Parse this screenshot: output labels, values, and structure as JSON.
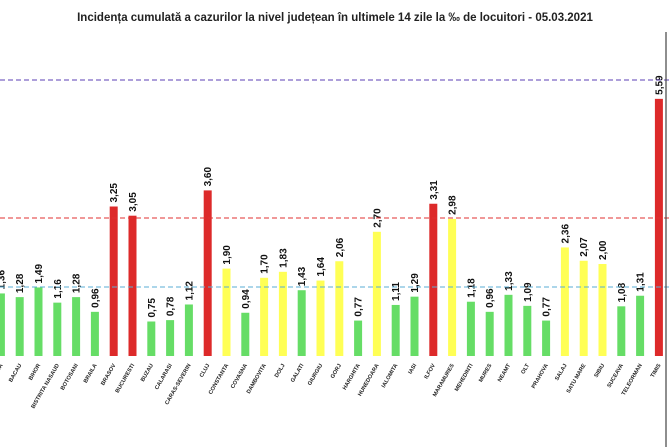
{
  "chart_data": {
    "type": "bar",
    "title": "Incidența cumulată a cazurilor la nivel județean în ultimele 14 zile la ‰ de locuitori - 05.03.2021",
    "ylim": [
      0,
      7.2
    ],
    "reference_lines": [
      {
        "value": 6.0,
        "color": "#5b3fb5"
      },
      {
        "value": 3.0,
        "color": "#e03030"
      },
      {
        "value": 1.5,
        "color": "#5aaed4"
      }
    ],
    "colors": {
      "green": "#66dd66",
      "yellow": "#ffff55",
      "red": "#dd2a2a"
    },
    "categories": [
      "ALBA",
      "BACAU",
      "BIHOR",
      "BISTRITA NASAUD",
      "BOTOSANI",
      "BRAILA",
      "BRASOV",
      "BUCURESTI",
      "BUZAU",
      "CALARASI",
      "CARAS-SEVERIN",
      "CLUJ",
      "CONSTANTA",
      "COVASNA",
      "DAMBOVITA",
      "DOLJ",
      "GALATI",
      "GIURGIU",
      "GORJ",
      "HARGHITA",
      "HUNEDOARA",
      "IALOMITA",
      "IASI",
      "ILFOV",
      "MARAMURES",
      "MEHEDINTI",
      "MURES",
      "NEAMT",
      "OLT",
      "PRAHOVA",
      "SALAJ",
      "SATU MARE",
      "SIBIU",
      "SUCEAVA",
      "TELEORMAN",
      "TIMIS"
    ],
    "values": [
      1.36,
      1.28,
      1.49,
      1.16,
      1.28,
      0.96,
      3.25,
      3.05,
      0.75,
      0.78,
      1.12,
      3.6,
      1.9,
      0.94,
      1.7,
      1.83,
      1.43,
      1.64,
      2.06,
      0.77,
      2.7,
      1.11,
      1.29,
      3.31,
      2.98,
      1.18,
      0.96,
      1.33,
      1.09,
      0.77,
      2.36,
      2.07,
      2.0,
      1.08,
      1.31,
      5.59
    ],
    "value_labels": [
      "1,36",
      "1,28",
      "1,49",
      "1,16",
      "1,28",
      "0,96",
      "3,25",
      "3,05",
      "0,75",
      "0,78",
      "1,12",
      "3,60",
      "1,90",
      "0,94",
      "1,70",
      "1,83",
      "1,43",
      "1,64",
      "2,06",
      "0,77",
      "2,70",
      "1,11",
      "1,29",
      "3,31",
      "2,98",
      "1,18",
      "0,96",
      "1,33",
      "1,09",
      "0,77",
      "2,36",
      "2,07",
      "2,00",
      "1,08",
      "1,31",
      "5,59"
    ],
    "bar_colors": [
      "green",
      "green",
      "green",
      "green",
      "green",
      "green",
      "red",
      "red",
      "green",
      "green",
      "green",
      "red",
      "yellow",
      "green",
      "yellow",
      "yellow",
      "green",
      "yellow",
      "yellow",
      "green",
      "yellow",
      "green",
      "green",
      "red",
      "yellow",
      "green",
      "green",
      "green",
      "green",
      "green",
      "yellow",
      "yellow",
      "yellow",
      "green",
      "green",
      "red"
    ]
  }
}
